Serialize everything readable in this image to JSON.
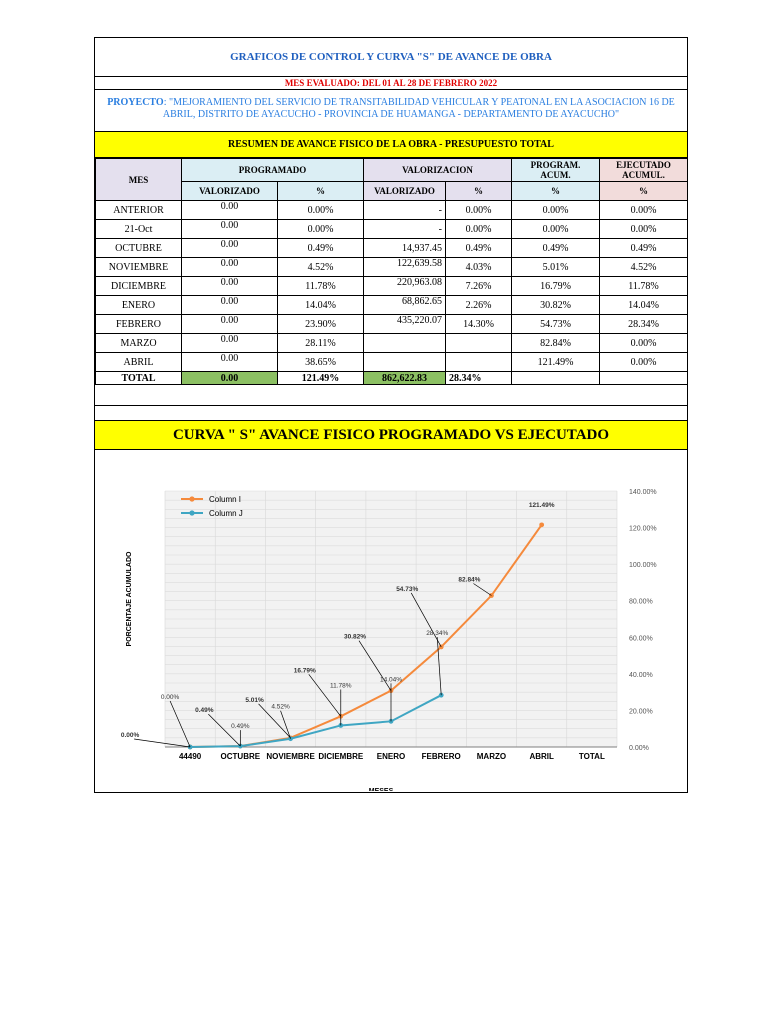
{
  "header": {
    "title": "GRAFICOS DE CONTROL  Y CURVA \"S\" DE AVANCE DE OBRA",
    "mes_evaluado": "MES EVALUADO: DEL 01 AL 28 DE FEBRERO 2022",
    "proyecto_label": "PROYECTO",
    "proyecto_text": ": \"MEJORAMIENTO DEL SERVICIO DE TRANSITABILIDAD VEHICULAR Y PEATONAL EN LA ASOCIACION 16 DE ABRIL, DISTRITO DE AYACUCHO - PROVINCIA DE HUAMANGA - DEPARTAMENTO DE AYACUCHO\"",
    "resumen": "RESUMEN DE AVANCE FISICO DE LA OBRA - PRESUPUESTO TOTAL"
  },
  "table": {
    "col_mes": "MES",
    "col_programado": "PROGRAMADO",
    "col_valorizacion": "VALORIZACION",
    "col_prog_acum": "PROGRAM. ACUM.",
    "col_ejec_acum": "EJECUTADO ACUMUL.",
    "sub_valorizado": "VALORIZADO",
    "sub_pct": "%",
    "rows": [
      {
        "mes": "ANTERIOR",
        "prog_val": "0.00",
        "prog_pct": "0.00%",
        "val_val": "-",
        "val_pct": "0.00%",
        "acum": "0.00%",
        "ejec": "0.00%"
      },
      {
        "mes": "21-Oct",
        "prog_val": "0.00",
        "prog_pct": "0.00%",
        "val_val": "-",
        "val_pct": "0.00%",
        "acum": "0.00%",
        "ejec": "0.00%"
      },
      {
        "mes": "OCTUBRE",
        "prog_val": "0.00",
        "prog_pct": "0.49%",
        "val_val": "14,937.45",
        "val_pct": "0.49%",
        "acum": "0.49%",
        "ejec": "0.49%"
      },
      {
        "mes": "NOVIEMBRE",
        "prog_val": "0.00",
        "prog_pct": "4.52%",
        "val_val": "122,639.58",
        "val_pct": "4.03%",
        "acum": "5.01%",
        "ejec": "4.52%"
      },
      {
        "mes": "DICIEMBRE",
        "prog_val": "0.00",
        "prog_pct": "11.78%",
        "val_val": "220,963.08",
        "val_pct": "7.26%",
        "acum": "16.79%",
        "ejec": "11.78%"
      },
      {
        "mes": "ENERO",
        "prog_val": "0.00",
        "prog_pct": "14.04%",
        "val_val": "68,862.65",
        "val_pct": "2.26%",
        "acum": "30.82%",
        "ejec": "14.04%"
      },
      {
        "mes": "FEBRERO",
        "prog_val": "0.00",
        "prog_pct": "23.90%",
        "val_val": "435,220.07",
        "val_pct": "14.30%",
        "acum": "54.73%",
        "ejec": "28.34%"
      },
      {
        "mes": "MARZO",
        "prog_val": "0.00",
        "prog_pct": "28.11%",
        "val_val": "",
        "val_pct": "",
        "acum": "82.84%",
        "ejec": "0.00%"
      },
      {
        "mes": "ABRIL",
        "prog_val": "0.00",
        "prog_pct": "38.65%",
        "val_val": "",
        "val_pct": "",
        "acum": "121.49%",
        "ejec": "0.00%"
      }
    ],
    "total": {
      "mes": "TOTAL",
      "prog_val": "0.00",
      "prog_pct": "121.49%",
      "val_val": "862,622.83",
      "val_pct": "28.34%"
    }
  },
  "curva_title": "CURVA \" S\" AVANCE FISICO PROGRAMADO VS EJECUTADO",
  "chart_data": {
    "type": "line",
    "categories": [
      "44490",
      "OCTUBRE",
      "NOVIEMBRE",
      "DICIEMBRE",
      "ENERO",
      "FEBRERO",
      "MARZO",
      "ABRIL",
      "TOTAL"
    ],
    "series": [
      {
        "name": "Column I",
        "color": "#f58a3c",
        "values": [
          0,
          0.49,
          5.01,
          16.79,
          30.82,
          54.73,
          82.84,
          121.49,
          null
        ],
        "labels": [
          "0.00%",
          "0.49%",
          "5.01%",
          "16.79%",
          "30.82%",
          "54.73%",
          "82.84%",
          "121.49%",
          ""
        ]
      },
      {
        "name": "Column J",
        "color": "#3fa6c3",
        "values": [
          0,
          0.49,
          4.52,
          11.78,
          14.04,
          28.34,
          null,
          null,
          null
        ],
        "labels": [
          "0.00%",
          "0.49%",
          "4.52%",
          "11.78%",
          "14.04%",
          "28.34%",
          "",
          "",
          ""
        ]
      }
    ],
    "xlabel": "MESES",
    "ylabel": "PORCENTAJE ACUMULADO",
    "ylim": [
      0,
      140
    ],
    "yticks": [
      "0.00%",
      "20.00%",
      "40.00%",
      "60.00%",
      "80.00%",
      "100.00%",
      "120.00%",
      "140.00%"
    ],
    "grid": true,
    "legend": "top-left"
  }
}
